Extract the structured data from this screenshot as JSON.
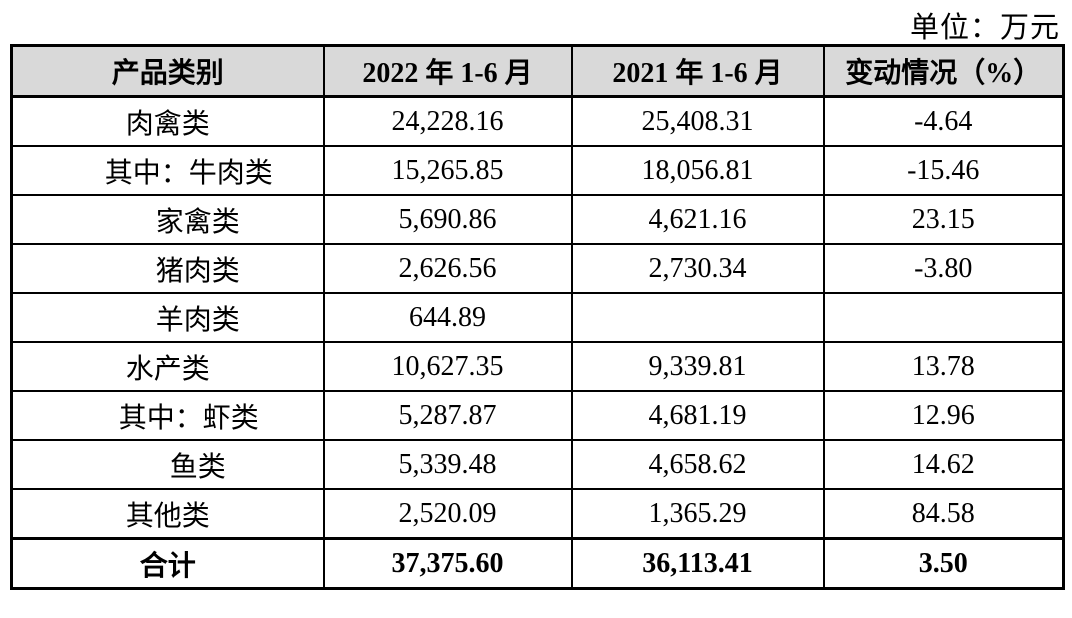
{
  "unit_label": "单位：万元",
  "table": {
    "headers": [
      "产品类别",
      "2022 年 1-6 月",
      "2021 年 1-6 月",
      "变动情况（%）"
    ],
    "rows": [
      {
        "category": "肉禽类",
        "v2022": "24,228.16",
        "v2021": "25,408.31",
        "change": "-4.64"
      },
      {
        "category": "其中：牛肉类",
        "v2022": "15,265.85",
        "v2021": "18,056.81",
        "change": "-15.46"
      },
      {
        "category": "家禽类",
        "v2022": "5,690.86",
        "v2021": "4,621.16",
        "change": "23.15"
      },
      {
        "category": "猪肉类",
        "v2022": "2,626.56",
        "v2021": "2,730.34",
        "change": "-3.80"
      },
      {
        "category": "羊肉类",
        "v2022": "644.89",
        "v2021": "",
        "change": ""
      },
      {
        "category": "水产类",
        "v2022": "10,627.35",
        "v2021": "9,339.81",
        "change": "13.78"
      },
      {
        "category": "其中：虾类",
        "v2022": "5,287.87",
        "v2021": "4,681.19",
        "change": "12.96"
      },
      {
        "category": "鱼类",
        "v2022": "5,339.48",
        "v2021": "4,658.62",
        "change": "14.62"
      },
      {
        "category": "其他类",
        "v2022": "2,520.09",
        "v2021": "1,365.29",
        "change": "84.58"
      },
      {
        "category": "合计",
        "v2022": "37,375.60",
        "v2021": "36,113.41",
        "change": "3.50"
      }
    ]
  },
  "colors": {
    "header_bg": "#d9d9d9",
    "border": "#000000",
    "text": "#000000",
    "page_bg": "#ffffff"
  }
}
